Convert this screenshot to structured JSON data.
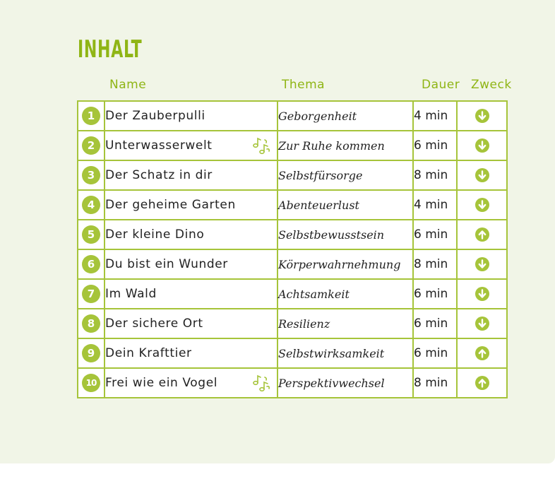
{
  "title": "INHALT",
  "columns": {
    "name": "Name",
    "theme": "Thema",
    "duration": "Dauer",
    "purpose": "Zweck"
  },
  "colors": {
    "accent": "#a6c43a",
    "heading": "#8fb515",
    "page": "#f1f5e7"
  },
  "rows": [
    {
      "num": "1",
      "name": "Der Zauberpulli",
      "theme": "Geborgenheit",
      "duration": "4 min",
      "purpose": "down-arrow-icon",
      "music": false
    },
    {
      "num": "2",
      "name": "Unterwasserwelt",
      "theme": "Zur Ruhe kommen",
      "duration": "6 min",
      "purpose": "down-arrow-icon",
      "music": true
    },
    {
      "num": "3",
      "name": "Der Schatz in dir",
      "theme": "Selbstfürsorge",
      "duration": "8 min",
      "purpose": "down-arrow-icon",
      "music": false
    },
    {
      "num": "4",
      "name": "Der geheime Garten",
      "theme": "Abenteuerlust",
      "duration": "4 min",
      "purpose": "down-arrow-icon",
      "music": false
    },
    {
      "num": "5",
      "name": "Der kleine Dino",
      "theme": "Selbstbewusstsein",
      "duration": "6 min",
      "purpose": "up-arrow-icon",
      "music": false
    },
    {
      "num": "6",
      "name": "Du bist ein Wunder",
      "theme": "Körperwahrnehmung",
      "duration": "8 min",
      "purpose": "down-arrow-icon",
      "music": false
    },
    {
      "num": "7",
      "name": "Im Wald",
      "theme": "Achtsamkeit",
      "duration": "6 min",
      "purpose": "down-arrow-icon",
      "music": false
    },
    {
      "num": "8",
      "name": "Der sichere Ort",
      "theme": "Resilienz",
      "duration": "6 min",
      "purpose": "down-arrow-icon",
      "music": false
    },
    {
      "num": "9",
      "name": "Dein Krafttier",
      "theme": "Selbstwirksamkeit",
      "duration": "6 min",
      "purpose": "up-arrow-icon",
      "music": false
    },
    {
      "num": "10",
      "name": "Frei wie ein Vogel",
      "theme": "Perspektivwechsel",
      "duration": "8 min",
      "purpose": "up-arrow-icon",
      "music": true
    }
  ]
}
